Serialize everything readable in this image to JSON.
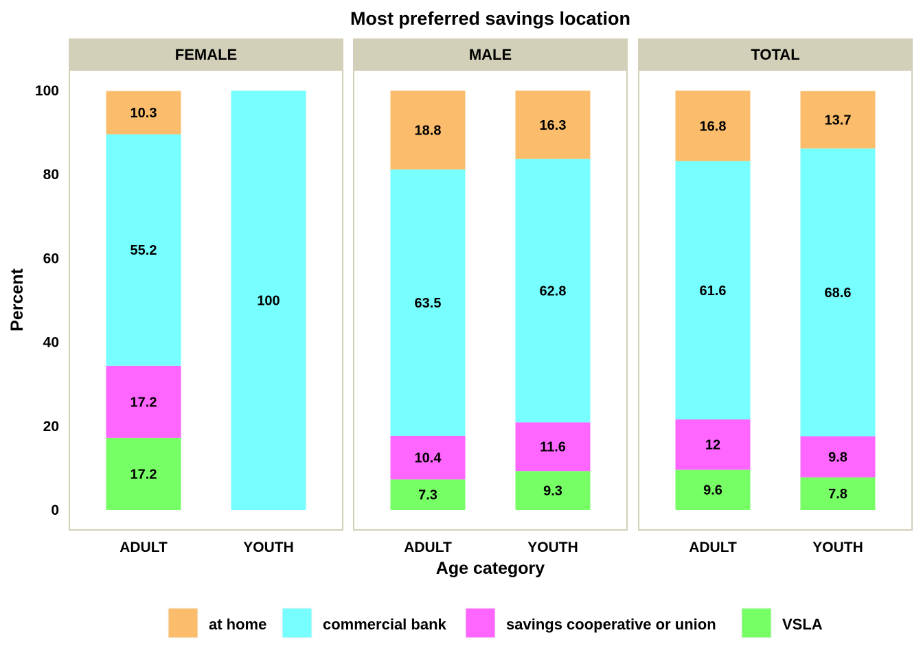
{
  "chart_data": {
    "type": "bar",
    "stacked": true,
    "title": "Most preferred savings location",
    "xlabel": "Age category",
    "ylabel": "Percent",
    "ylim": [
      0,
      100
    ],
    "yticks": [
      "0",
      "20",
      "40",
      "60",
      "80",
      "100"
    ],
    "categories": [
      "ADULT",
      "YOUTH"
    ],
    "legend_position": "bottom",
    "series": [
      {
        "name": "VSLA",
        "color": "#77FF66"
      },
      {
        "name": "savings cooperative or union",
        "color": "#FF66FF"
      },
      {
        "name": "commercial bank",
        "color": "#77FFFF"
      },
      {
        "name": "at home",
        "color": "#FBBD6B"
      }
    ],
    "legend_order": [
      "at home",
      "commercial bank",
      "savings cooperative or union",
      "VSLA"
    ],
    "panels": [
      {
        "label": "FEMALE",
        "bars": [
          {
            "category": "ADULT",
            "values": [
              17.2,
              17.2,
              55.2,
              10.3
            ],
            "labels": [
              "17.2",
              "17.2",
              "55.2",
              "10.3"
            ]
          },
          {
            "category": "YOUTH",
            "values": [
              0,
              0,
              100,
              0
            ],
            "labels": [
              "",
              "",
              "100",
              ""
            ]
          }
        ]
      },
      {
        "label": "MALE",
        "bars": [
          {
            "category": "ADULT",
            "values": [
              7.3,
              10.4,
              63.5,
              18.8
            ],
            "labels": [
              "7.3",
              "10.4",
              "63.5",
              "18.8"
            ]
          },
          {
            "category": "YOUTH",
            "values": [
              9.3,
              11.6,
              62.8,
              16.3
            ],
            "labels": [
              "9.3",
              "11.6",
              "62.8",
              "16.3"
            ]
          }
        ]
      },
      {
        "label": "TOTAL",
        "bars": [
          {
            "category": "ADULT",
            "values": [
              9.6,
              12,
              61.6,
              16.8
            ],
            "labels": [
              "9.6",
              "12",
              "61.6",
              "16.8"
            ]
          },
          {
            "category": "YOUTH",
            "values": [
              7.8,
              9.8,
              68.6,
              13.7
            ],
            "labels": [
              "7.8",
              "9.8",
              "68.6",
              "13.7"
            ]
          }
        ]
      }
    ],
    "strip_fill": "#D2D0B8",
    "panel_border": "#D2D0B8"
  }
}
